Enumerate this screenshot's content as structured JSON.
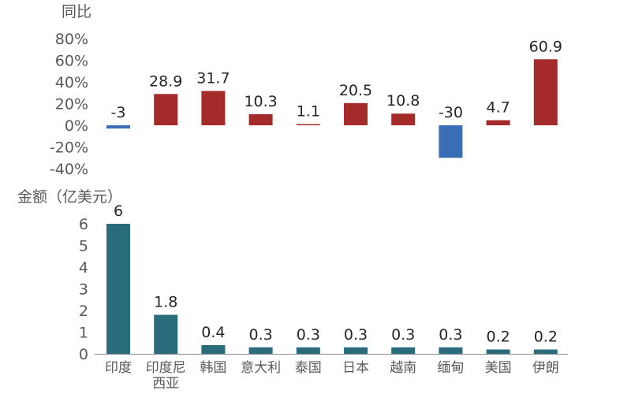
{
  "chart_data": [
    {
      "type": "bar",
      "ylabel": "同比",
      "categories": [
        "印度",
        "印度尼西亚",
        "韩国",
        "意大利",
        "泰国",
        "日本",
        "越南",
        "缅甸",
        "美国",
        "伊朗"
      ],
      "values": [
        -3,
        28.9,
        31.7,
        10.3,
        1.1,
        20.5,
        10.8,
        -30,
        4.7,
        60.9
      ],
      "value_labels": [
        "-3",
        "28.9",
        "31.7",
        "10.3",
        "1.1",
        "20.5",
        "10.8",
        "-30",
        "4.7",
        "60.9"
      ],
      "ylim": [
        -40,
        80
      ],
      "yticks": [
        "80%",
        "60%",
        "40%",
        "20%",
        "0%",
        "-20%",
        "-40%"
      ],
      "ytick_values": [
        80,
        60,
        40,
        20,
        0,
        -20,
        -40
      ],
      "colors": {
        "positive": "#A52A2A",
        "negative": "#3A6DB5"
      },
      "grid": false
    },
    {
      "type": "bar",
      "ylabel": "金额（亿美元）",
      "categories": [
        "印度",
        "印度尼西亚",
        "韩国",
        "意大利",
        "泰国",
        "日本",
        "越南",
        "缅甸",
        "美国",
        "伊朗"
      ],
      "category_lines": [
        [
          "印度"
        ],
        [
          "印度尼",
          "西亚"
        ],
        [
          "韩国"
        ],
        [
          "意大利"
        ],
        [
          "泰国"
        ],
        [
          "日本"
        ],
        [
          "越南"
        ],
        [
          "缅甸"
        ],
        [
          "美国"
        ],
        [
          "伊朗"
        ]
      ],
      "values": [
        6,
        1.8,
        0.4,
        0.3,
        0.3,
        0.3,
        0.3,
        0.3,
        0.2,
        0.2
      ],
      "value_labels": [
        "6",
        "1.8",
        "0.4",
        "0.3",
        "0.3",
        "0.3",
        "0.3",
        "0.3",
        "0.2",
        "0.2"
      ],
      "ylim": [
        0,
        6
      ],
      "yticks": [
        "6",
        "5",
        "4",
        "3",
        "2",
        "1",
        "0"
      ],
      "ytick_values": [
        6,
        5,
        4,
        3,
        2,
        1,
        0
      ],
      "colors": {
        "bar": "#2A6B7C",
        "axis": "#8C8C8C"
      },
      "grid": false
    }
  ]
}
